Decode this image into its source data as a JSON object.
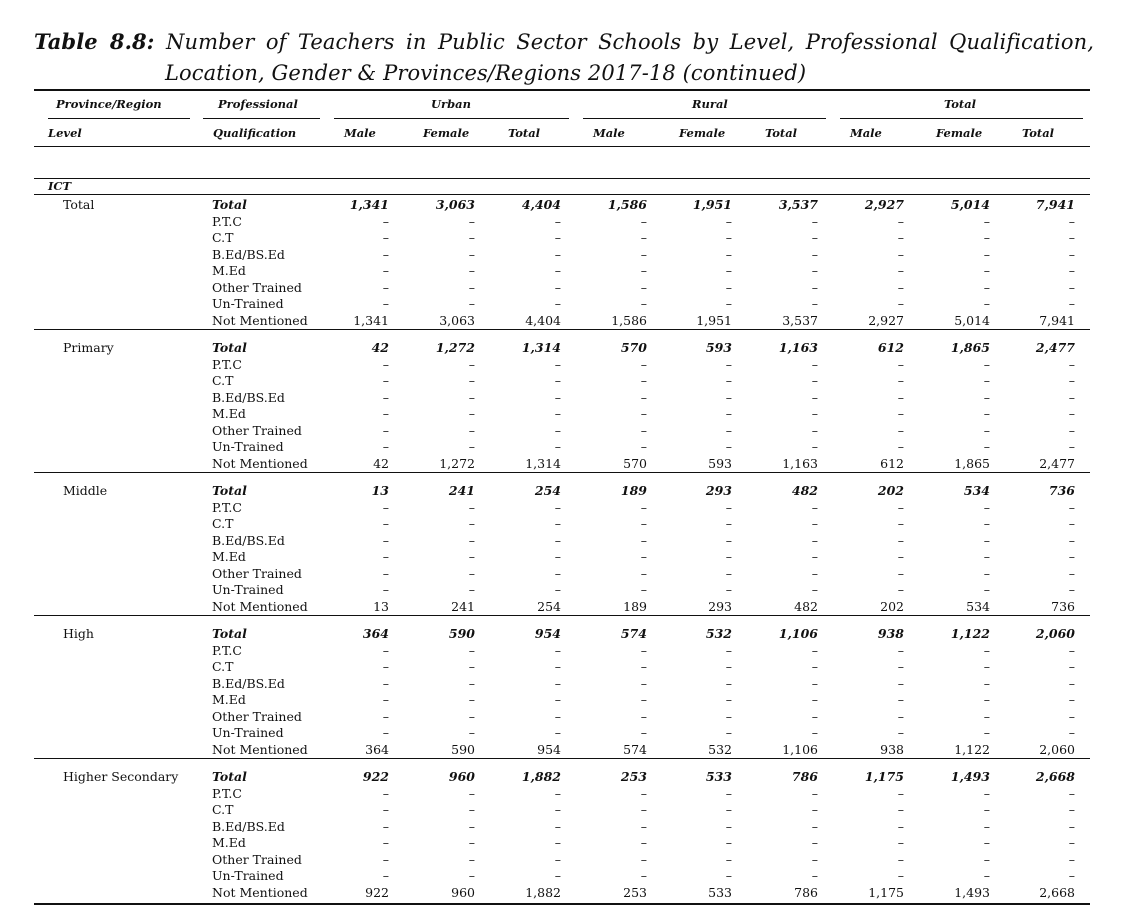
{
  "caption": {
    "label": "Table 8.8:",
    "line1_rest": "Number of Teachers in Public Sector Schools by Level, Professional Qualification,",
    "line2": "Location, Gender & Provinces/Regions 2017-18 (continued)"
  },
  "header": {
    "province_region": "Province/Region",
    "level": "Level",
    "professional": "Professional",
    "qualification": "Qualification",
    "urban": "Urban",
    "rural": "Rural",
    "total": "Total",
    "male": "Male",
    "female": "Female",
    "total_col": "Total"
  },
  "region": "ICT",
  "groups": [
    {
      "level": "Total",
      "rows": [
        {
          "q": "Total",
          "v": [
            "1,341",
            "3,063",
            "4,404",
            "1,586",
            "1,951",
            "3,537",
            "2,927",
            "5,014",
            "7,941"
          ]
        },
        {
          "q": "P.T.C",
          "v": [
            "–",
            "–",
            "–",
            "–",
            "–",
            "–",
            "–",
            "–",
            "–"
          ]
        },
        {
          "q": "C.T",
          "v": [
            "–",
            "–",
            "–",
            "–",
            "–",
            "–",
            "–",
            "–",
            "–"
          ]
        },
        {
          "q": "B.Ed/BS.Ed",
          "v": [
            "–",
            "–",
            "–",
            "–",
            "–",
            "–",
            "–",
            "–",
            "–"
          ]
        },
        {
          "q": "M.Ed",
          "v": [
            "–",
            "–",
            "–",
            "–",
            "–",
            "–",
            "–",
            "–",
            "–"
          ]
        },
        {
          "q": "Other Trained",
          "v": [
            "–",
            "–",
            "–",
            "–",
            "–",
            "–",
            "–",
            "–",
            "–"
          ]
        },
        {
          "q": "Un-Trained",
          "v": [
            "–",
            "–",
            "–",
            "–",
            "–",
            "–",
            "–",
            "–",
            "–"
          ]
        },
        {
          "q": "Not Mentioned",
          "v": [
            "1,341",
            "3,063",
            "4,404",
            "1,586",
            "1,951",
            "3,537",
            "2,927",
            "5,014",
            "7,941"
          ]
        }
      ]
    },
    {
      "level": "Primary",
      "rows": [
        {
          "q": "Total",
          "v": [
            "42",
            "1,272",
            "1,314",
            "570",
            "593",
            "1,163",
            "612",
            "1,865",
            "2,477"
          ]
        },
        {
          "q": "P.T.C",
          "v": [
            "–",
            "–",
            "–",
            "–",
            "–",
            "–",
            "–",
            "–",
            "–"
          ]
        },
        {
          "q": "C.T",
          "v": [
            "–",
            "–",
            "–",
            "–",
            "–",
            "–",
            "–",
            "–",
            "–"
          ]
        },
        {
          "q": "B.Ed/BS.Ed",
          "v": [
            "–",
            "–",
            "–",
            "–",
            "–",
            "–",
            "–",
            "–",
            "–"
          ]
        },
        {
          "q": "M.Ed",
          "v": [
            "–",
            "–",
            "–",
            "–",
            "–",
            "–",
            "–",
            "–",
            "–"
          ]
        },
        {
          "q": "Other Trained",
          "v": [
            "–",
            "–",
            "–",
            "–",
            "–",
            "–",
            "–",
            "–",
            "–"
          ]
        },
        {
          "q": "Un-Trained",
          "v": [
            "–",
            "–",
            "–",
            "–",
            "–",
            "–",
            "–",
            "–",
            "–"
          ]
        },
        {
          "q": "Not Mentioned",
          "v": [
            "42",
            "1,272",
            "1,314",
            "570",
            "593",
            "1,163",
            "612",
            "1,865",
            "2,477"
          ]
        }
      ]
    },
    {
      "level": "Middle",
      "rows": [
        {
          "q": "Total",
          "v": [
            "13",
            "241",
            "254",
            "189",
            "293",
            "482",
            "202",
            "534",
            "736"
          ]
        },
        {
          "q": "P.T.C",
          "v": [
            "–",
            "–",
            "–",
            "–",
            "–",
            "–",
            "–",
            "–",
            "–"
          ]
        },
        {
          "q": "C.T",
          "v": [
            "–",
            "–",
            "–",
            "–",
            "–",
            "–",
            "–",
            "–",
            "–"
          ]
        },
        {
          "q": "B.Ed/BS.Ed",
          "v": [
            "–",
            "–",
            "–",
            "–",
            "–",
            "–",
            "–",
            "–",
            "–"
          ]
        },
        {
          "q": "M.Ed",
          "v": [
            "–",
            "–",
            "–",
            "–",
            "–",
            "–",
            "–",
            "–",
            "–"
          ]
        },
        {
          "q": "Other Trained",
          "v": [
            "–",
            "–",
            "–",
            "–",
            "–",
            "–",
            "–",
            "–",
            "–"
          ]
        },
        {
          "q": "Un-Trained",
          "v": [
            "–",
            "–",
            "–",
            "–",
            "–",
            "–",
            "–",
            "–",
            "–"
          ]
        },
        {
          "q": "Not Mentioned",
          "v": [
            "13",
            "241",
            "254",
            "189",
            "293",
            "482",
            "202",
            "534",
            "736"
          ]
        }
      ]
    },
    {
      "level": "High",
      "rows": [
        {
          "q": "Total",
          "v": [
            "364",
            "590",
            "954",
            "574",
            "532",
            "1,106",
            "938",
            "1,122",
            "2,060"
          ]
        },
        {
          "q": "P.T.C",
          "v": [
            "–",
            "–",
            "–",
            "–",
            "–",
            "–",
            "–",
            "–",
            "–"
          ]
        },
        {
          "q": "C.T",
          "v": [
            "–",
            "–",
            "–",
            "–",
            "–",
            "–",
            "–",
            "–",
            "–"
          ]
        },
        {
          "q": "B.Ed/BS.Ed",
          "v": [
            "–",
            "–",
            "–",
            "–",
            "–",
            "–",
            "–",
            "–",
            "–"
          ]
        },
        {
          "q": "M.Ed",
          "v": [
            "–",
            "–",
            "–",
            "–",
            "–",
            "–",
            "–",
            "–",
            "–"
          ]
        },
        {
          "q": "Other Trained",
          "v": [
            "–",
            "–",
            "–",
            "–",
            "–",
            "–",
            "–",
            "–",
            "–"
          ]
        },
        {
          "q": "Un-Trained",
          "v": [
            "–",
            "–",
            "–",
            "–",
            "–",
            "–",
            "–",
            "–",
            "–"
          ]
        },
        {
          "q": "Not Mentioned",
          "v": [
            "364",
            "590",
            "954",
            "574",
            "532",
            "1,106",
            "938",
            "1,122",
            "2,060"
          ]
        }
      ]
    },
    {
      "level": "Higher Secondary",
      "rows": [
        {
          "q": "Total",
          "v": [
            "922",
            "960",
            "1,882",
            "253",
            "533",
            "786",
            "1,175",
            "1,493",
            "2,668"
          ]
        },
        {
          "q": "P.T.C",
          "v": [
            "–",
            "–",
            "–",
            "–",
            "–",
            "–",
            "–",
            "–",
            "–"
          ]
        },
        {
          "q": "C.T",
          "v": [
            "–",
            "–",
            "–",
            "–",
            "–",
            "–",
            "–",
            "–",
            "–"
          ]
        },
        {
          "q": "B.Ed/BS.Ed",
          "v": [
            "–",
            "–",
            "–",
            "–",
            "–",
            "–",
            "–",
            "–",
            "–"
          ]
        },
        {
          "q": "M.Ed",
          "v": [
            "–",
            "–",
            "–",
            "–",
            "–",
            "–",
            "–",
            "–",
            "–"
          ]
        },
        {
          "q": "Other Trained",
          "v": [
            "–",
            "–",
            "–",
            "–",
            "–",
            "–",
            "–",
            "–",
            "–"
          ]
        },
        {
          "q": "Un-Trained",
          "v": [
            "–",
            "–",
            "–",
            "–",
            "–",
            "–",
            "–",
            "–",
            "–"
          ]
        },
        {
          "q": "Not Mentioned",
          "v": [
            "922",
            "960",
            "1,882",
            "253",
            "533",
            "786",
            "1,175",
            "1,493",
            "2,668"
          ]
        }
      ]
    }
  ]
}
